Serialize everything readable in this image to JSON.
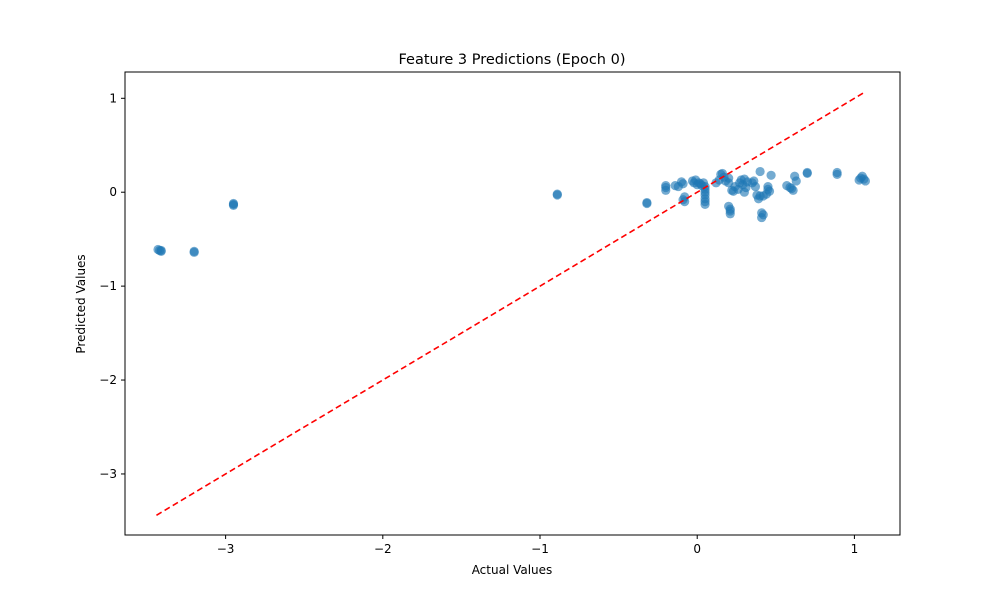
{
  "chart_data": {
    "type": "scatter",
    "title": "Feature 3 Predictions (Epoch 0)",
    "xlabel": "Actual Values",
    "ylabel": "Predicted Values",
    "xlim": [
      -3.64,
      1.29
    ],
    "ylim": [
      -3.65,
      1.28
    ],
    "xticks": [
      -3,
      -2,
      -1,
      0,
      1
    ],
    "yticks": [
      -3,
      -2,
      -1,
      0,
      1
    ],
    "xtick_labels": [
      "−3",
      "−2",
      "−1",
      "0",
      "1"
    ],
    "ytick_labels": [
      "−3",
      "−2",
      "−1",
      "0",
      "1"
    ],
    "grid": false,
    "colors": {
      "points": "#1f77b4",
      "reference_line": "#ff0000"
    },
    "reference_line": {
      "style": "dashed",
      "x": [
        -3.44,
        1.06
      ],
      "y": [
        -3.44,
        1.06
      ]
    },
    "series": [
      {
        "x": [
          -3.43,
          -3.42,
          -3.41,
          -3.41,
          -3.2,
          -3.2,
          -2.95,
          -2.95,
          -2.95,
          -0.89,
          -0.89,
          -0.32,
          -0.32,
          -0.2,
          -0.2,
          -0.2,
          -0.14,
          -0.12,
          -0.1,
          -0.09,
          -0.09,
          -0.08,
          -0.08,
          -0.03,
          -0.02,
          -0.01,
          0.0,
          0.01,
          0.02,
          0.03,
          0.04,
          0.05,
          0.05,
          0.05,
          0.05,
          0.05,
          0.05,
          0.05,
          0.12,
          0.14,
          0.15,
          0.16,
          0.17,
          0.18,
          0.2,
          0.2,
          0.2,
          0.21,
          0.21,
          0.21,
          0.22,
          0.23,
          0.24,
          0.26,
          0.27,
          0.28,
          0.29,
          0.3,
          0.3,
          0.31,
          0.32,
          0.35,
          0.36,
          0.37,
          0.38,
          0.39,
          0.4,
          0.4,
          0.41,
          0.41,
          0.42,
          0.42,
          0.44,
          0.45,
          0.45,
          0.46,
          0.47,
          0.57,
          0.59,
          0.6,
          0.61,
          0.62,
          0.63,
          0.7,
          0.7,
          0.89,
          0.89,
          1.03,
          1.04,
          1.05,
          1.06,
          1.07
        ],
        "y": [
          -0.61,
          -0.62,
          -0.63,
          -0.62,
          -0.63,
          -0.64,
          -0.12,
          -0.14,
          -0.13,
          -0.02,
          -0.03,
          -0.11,
          -0.12,
          0.05,
          0.02,
          0.07,
          0.07,
          0.06,
          0.11,
          0.09,
          -0.08,
          -0.05,
          -0.1,
          0.12,
          0.1,
          0.13,
          0.08,
          0.1,
          0.09,
          0.07,
          0.1,
          0.06,
          0.03,
          0.0,
          -0.03,
          -0.07,
          -0.1,
          -0.13,
          0.1,
          0.13,
          0.19,
          0.2,
          0.16,
          0.12,
          0.15,
          0.1,
          -0.15,
          -0.18,
          -0.2,
          -0.23,
          0.02,
          0.01,
          0.06,
          0.03,
          0.1,
          0.13,
          0.08,
          0.14,
          0.0,
          0.05,
          0.11,
          0.1,
          0.12,
          0.06,
          -0.03,
          -0.07,
          0.22,
          -0.04,
          -0.22,
          -0.27,
          -0.24,
          -0.04,
          -0.02,
          0.06,
          0.03,
          0.01,
          0.18,
          0.07,
          0.05,
          0.04,
          0.02,
          0.17,
          0.12,
          0.2,
          0.21,
          0.19,
          0.21,
          0.13,
          0.15,
          0.17,
          0.14,
          0.12
        ]
      }
    ]
  }
}
